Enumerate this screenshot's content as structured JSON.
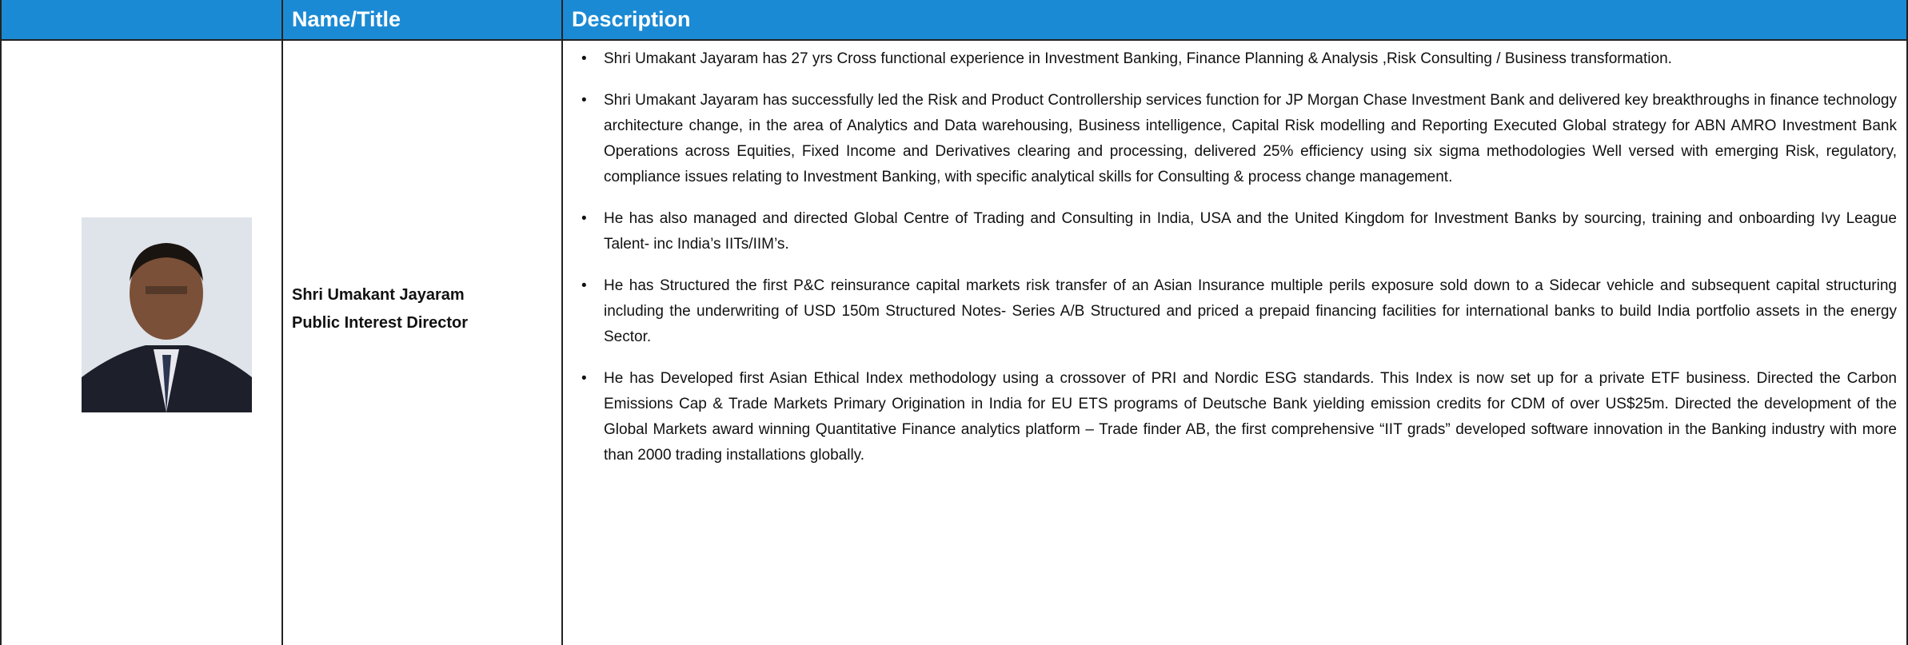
{
  "header": {
    "columns": [
      "Name/Title",
      "Description"
    ]
  },
  "row": {
    "name": "Shri Umakant Jayaram",
    "title": "Public Interest Director",
    "bullets": [
      "Shri Umakant Jayaram has 27 yrs Cross functional experience in Investment Banking, Finance Planning & Analysis ,Risk Consulting / Business transformation.",
      "Shri Umakant Jayaram has successfully led the Risk and Product Controllership services function for JP Morgan Chase Investment Bank and delivered key breakthroughs in finance technology architecture change, in the area of Analytics and Data warehousing, Business intelligence, Capital Risk modelling and Reporting Executed Global strategy for ABN AMRO Investment Bank Operations across Equities, Fixed Income and Derivatives clearing and processing, delivered 25% efficiency using six sigma methodologies Well versed with emerging Risk, regulatory, compliance issues relating to Investment Banking, with specific analytical skills for Consulting & process change management.",
      "He has also managed and directed Global Centre of Trading and Consulting in India, USA and the United Kingdom for Investment Banks by sourcing, training and onboarding Ivy League Talent- inc India’s IITs/IIM’s.",
      "He has Structured the first P&C reinsurance capital markets risk transfer of an Asian Insurance multiple perils exposure sold down to a Sidecar vehicle and subsequent capital structuring including the underwriting of USD 150m Structured Notes- Series A/B Structured and priced a prepaid financing facilities for international banks to build India portfolio assets in the energy Sector.",
      "He has Developed first Asian Ethical Index methodology using a crossover of PRI and Nordic ESG standards. This Index is now set up for a private ETF business. Directed the Carbon Emissions Cap & Trade Markets Primary Origination in India for EU ETS programs of Deutsche Bank yielding emission credits for CDM of over US$25m. Directed the development of the Global Markets award winning Quantitative Finance analytics platform – Trade finder AB, the first comprehensive “IIT grads” developed software innovation in the Banking industry with more than 2000 trading installations globally."
    ]
  }
}
